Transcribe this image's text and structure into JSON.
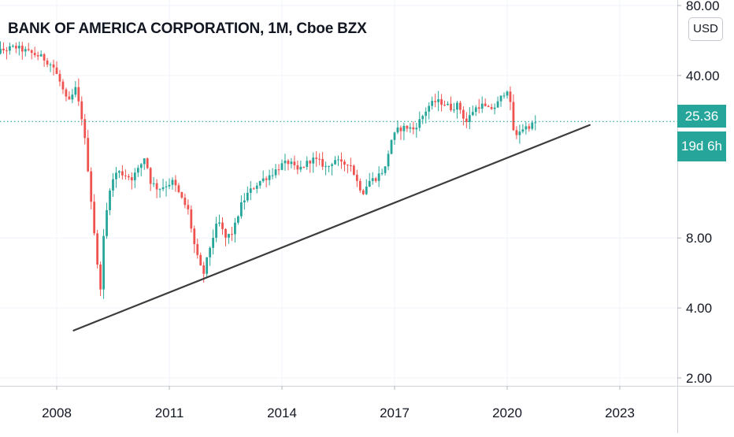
{
  "chart_data": {
    "type": "candlestick",
    "title": "BANK OF AMERICA CORPORATION, 1M, Cboe BZX",
    "currency": "USD",
    "y_scale": "log",
    "ylim": [
      1.75,
      90
    ],
    "y_ticks": [
      {
        "value": 80,
        "label": "80.00"
      },
      {
        "value": 40,
        "label": "40.00"
      },
      {
        "value": 8,
        "label": "8.00"
      },
      {
        "value": 4,
        "label": "4.00"
      },
      {
        "value": 2,
        "label": "2.00"
      }
    ],
    "x_range": [
      2006.0,
      2025.1
    ],
    "x_ticks": [
      {
        "value": 2008,
        "label": "2008"
      },
      {
        "value": 2011,
        "label": "2011"
      },
      {
        "value": 2014,
        "label": "2014"
      },
      {
        "value": 2017,
        "label": "2017"
      },
      {
        "value": 2020,
        "label": "2020"
      },
      {
        "value": 2023,
        "label": "2023"
      }
    ],
    "last_price": {
      "value": 25.36,
      "label": "25.36"
    },
    "countdown": "19d 6h",
    "up_color": "#26a69a",
    "down_color": "#ef5350",
    "grid": true,
    "trendline": {
      "start": [
        2008.45,
        3.2
      ],
      "end": [
        2022.2,
        24.5
      ],
      "color": "#3c3c3c"
    },
    "close_path": [
      [
        2006.0,
        48.5
      ],
      [
        2006.5,
        51
      ],
      [
        2006.9,
        53
      ],
      [
        2007.3,
        50
      ],
      [
        2007.6,
        48
      ],
      [
        2007.9,
        44
      ],
      [
        2008.1,
        37
      ],
      [
        2008.3,
        30
      ],
      [
        2008.5,
        35
      ],
      [
        2008.7,
        25
      ],
      [
        2008.85,
        15
      ],
      [
        2009.05,
        7
      ],
      [
        2009.15,
        4.5
      ],
      [
        2009.25,
        8
      ],
      [
        2009.4,
        13
      ],
      [
        2009.6,
        15.5
      ],
      [
        2009.8,
        15
      ],
      [
        2010.0,
        14.5
      ],
      [
        2010.2,
        16
      ],
      [
        2010.35,
        18
      ],
      [
        2010.5,
        14
      ],
      [
        2010.7,
        13
      ],
      [
        2010.9,
        13.5
      ],
      [
        2011.1,
        14
      ],
      [
        2011.3,
        12
      ],
      [
        2011.5,
        10.5
      ],
      [
        2011.7,
        7
      ],
      [
        2011.9,
        5.5
      ],
      [
        2012.1,
        7.5
      ],
      [
        2012.3,
        9.5
      ],
      [
        2012.5,
        8
      ],
      [
        2012.7,
        8.5
      ],
      [
        2012.9,
        11
      ],
      [
        2013.1,
        12.5
      ],
      [
        2013.4,
        14
      ],
      [
        2013.7,
        15
      ],
      [
        2014.0,
        16.5
      ],
      [
        2014.2,
        17
      ],
      [
        2014.4,
        15.5
      ],
      [
        2014.6,
        16.5
      ],
      [
        2014.8,
        17.5
      ],
      [
        2015.0,
        17
      ],
      [
        2015.2,
        16
      ],
      [
        2015.4,
        17.5
      ],
      [
        2015.6,
        16.5
      ],
      [
        2015.8,
        17
      ],
      [
        2016.0,
        14
      ],
      [
        2016.15,
        12.5
      ],
      [
        2016.3,
        14
      ],
      [
        2016.5,
        14.5
      ],
      [
        2016.75,
        16
      ],
      [
        2016.9,
        21
      ],
      [
        2017.1,
        23.5
      ],
      [
        2017.3,
        24
      ],
      [
        2017.5,
        23.5
      ],
      [
        2017.7,
        26
      ],
      [
        2017.9,
        29.5
      ],
      [
        2018.1,
        31
      ],
      [
        2018.3,
        30.5
      ],
      [
        2018.5,
        29
      ],
      [
        2018.7,
        30
      ],
      [
        2018.9,
        25
      ],
      [
        2019.1,
        28.5
      ],
      [
        2019.3,
        30
      ],
      [
        2019.5,
        28.5
      ],
      [
        2019.7,
        29.5
      ],
      [
        2019.9,
        33.5
      ],
      [
        2020.0,
        35
      ],
      [
        2020.1,
        29
      ],
      [
        2020.2,
        21
      ],
      [
        2020.35,
        23.5
      ],
      [
        2020.5,
        24
      ],
      [
        2020.65,
        24.5
      ],
      [
        2020.8,
        25.36
      ]
    ]
  }
}
